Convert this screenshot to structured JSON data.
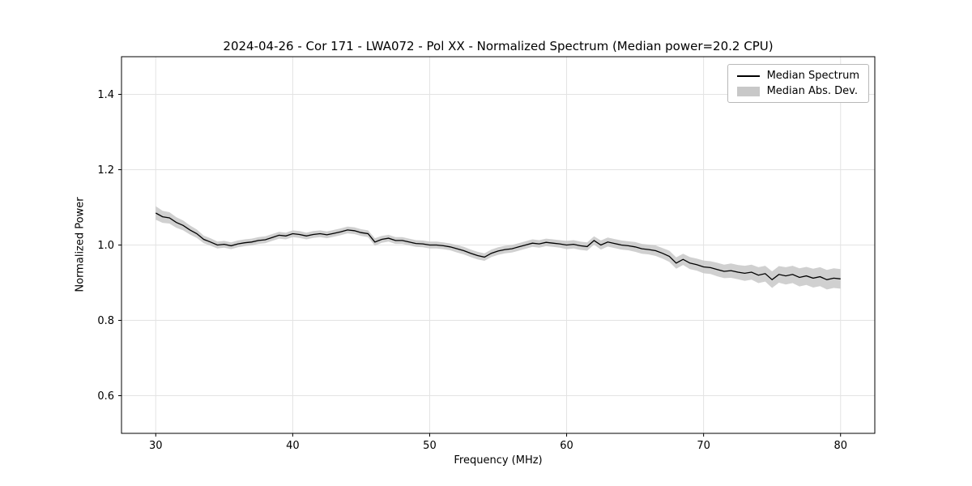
{
  "chart_data": {
    "type": "line",
    "title": "2024-04-26 - Cor 171 - LWA072 - Pol XX - Normalized Spectrum (Median power=20.2 CPU)",
    "xlabel": "Frequency (MHz)",
    "ylabel": "Normalized Power",
    "xlim": [
      27.5,
      82.5
    ],
    "ylim": [
      0.5,
      1.5
    ],
    "x_ticks": [
      30,
      40,
      50,
      60,
      70,
      80
    ],
    "y_ticks": [
      0.6,
      0.8,
      1.0,
      1.2,
      1.4
    ],
    "grid": true,
    "legend_position": "upper right",
    "colors": {
      "line": "#000000",
      "band": "#c8c8c8",
      "grid": "#e3e3e3",
      "frame": "#000000"
    },
    "x": [
      30,
      30.5,
      31,
      31.5,
      32,
      32.5,
      33,
      33.5,
      34,
      34.5,
      35,
      35.5,
      36,
      36.5,
      37,
      37.5,
      38,
      38.5,
      39,
      39.5,
      40,
      40.5,
      41,
      41.5,
      42,
      42.5,
      43,
      43.5,
      44,
      44.5,
      45,
      45.5,
      46,
      46.5,
      47,
      47.5,
      48,
      48.5,
      49,
      49.5,
      50,
      50.5,
      51,
      51.5,
      52,
      52.5,
      53,
      53.5,
      54,
      54.5,
      55,
      55.5,
      56,
      56.5,
      57,
      57.5,
      58,
      58.5,
      59,
      59.5,
      60,
      60.5,
      61,
      61.5,
      62,
      62.5,
      63,
      63.5,
      64,
      64.5,
      65,
      65.5,
      66,
      66.5,
      67,
      67.5,
      68,
      68.5,
      69,
      69.5,
      70,
      70.5,
      71,
      71.5,
      72,
      72.5,
      73,
      73.5,
      74,
      74.5,
      75,
      75.5,
      76,
      76.5,
      77,
      77.5,
      78,
      78.5,
      79,
      79.5,
      80
    ],
    "series": [
      {
        "name": "Median Spectrum",
        "type": "line",
        "color": "#000000",
        "values": [
          1.085,
          1.075,
          1.072,
          1.06,
          1.052,
          1.04,
          1.03,
          1.015,
          1.008,
          1.0,
          1.002,
          0.998,
          1.003,
          1.006,
          1.008,
          1.012,
          1.014,
          1.02,
          1.026,
          1.024,
          1.03,
          1.028,
          1.024,
          1.028,
          1.03,
          1.027,
          1.031,
          1.035,
          1.04,
          1.038,
          1.033,
          1.03,
          1.008,
          1.015,
          1.018,
          1.012,
          1.012,
          1.008,
          1.004,
          1.003,
          1.0,
          1.0,
          0.998,
          0.995,
          0.99,
          0.985,
          0.978,
          0.972,
          0.968,
          0.978,
          0.984,
          0.988,
          0.99,
          0.995,
          1.0,
          1.005,
          1.003,
          1.007,
          1.005,
          1.003,
          1.0,
          1.002,
          0.998,
          0.996,
          1.012,
          1.0,
          1.008,
          1.004,
          1.0,
          0.998,
          0.995,
          0.99,
          0.988,
          0.985,
          0.978,
          0.97,
          0.952,
          0.962,
          0.952,
          0.948,
          0.942,
          0.94,
          0.935,
          0.93,
          0.932,
          0.928,
          0.925,
          0.928,
          0.92,
          0.924,
          0.908,
          0.922,
          0.918,
          0.922,
          0.914,
          0.918,
          0.912,
          0.916,
          0.908,
          0.912,
          0.91
        ]
      },
      {
        "name": "Median Abs. Dev.",
        "type": "band",
        "color": "#c8c8c8",
        "half_widths": [
          0.018,
          0.016,
          0.015,
          0.014,
          0.013,
          0.012,
          0.011,
          0.01,
          0.01,
          0.009,
          0.009,
          0.009,
          0.009,
          0.009,
          0.009,
          0.009,
          0.009,
          0.009,
          0.009,
          0.009,
          0.009,
          0.009,
          0.009,
          0.009,
          0.009,
          0.009,
          0.009,
          0.009,
          0.009,
          0.009,
          0.009,
          0.009,
          0.01,
          0.009,
          0.009,
          0.009,
          0.009,
          0.009,
          0.009,
          0.009,
          0.009,
          0.009,
          0.009,
          0.009,
          0.01,
          0.01,
          0.01,
          0.01,
          0.01,
          0.01,
          0.01,
          0.01,
          0.01,
          0.01,
          0.01,
          0.01,
          0.01,
          0.01,
          0.01,
          0.01,
          0.011,
          0.011,
          0.011,
          0.011,
          0.011,
          0.012,
          0.012,
          0.012,
          0.012,
          0.012,
          0.013,
          0.013,
          0.013,
          0.014,
          0.014,
          0.015,
          0.015,
          0.015,
          0.016,
          0.016,
          0.017,
          0.017,
          0.018,
          0.018,
          0.019,
          0.019,
          0.02,
          0.02,
          0.021,
          0.021,
          0.022,
          0.022,
          0.023,
          0.023,
          0.024,
          0.024,
          0.025,
          0.025,
          0.026,
          0.026,
          0.026
        ]
      }
    ]
  }
}
